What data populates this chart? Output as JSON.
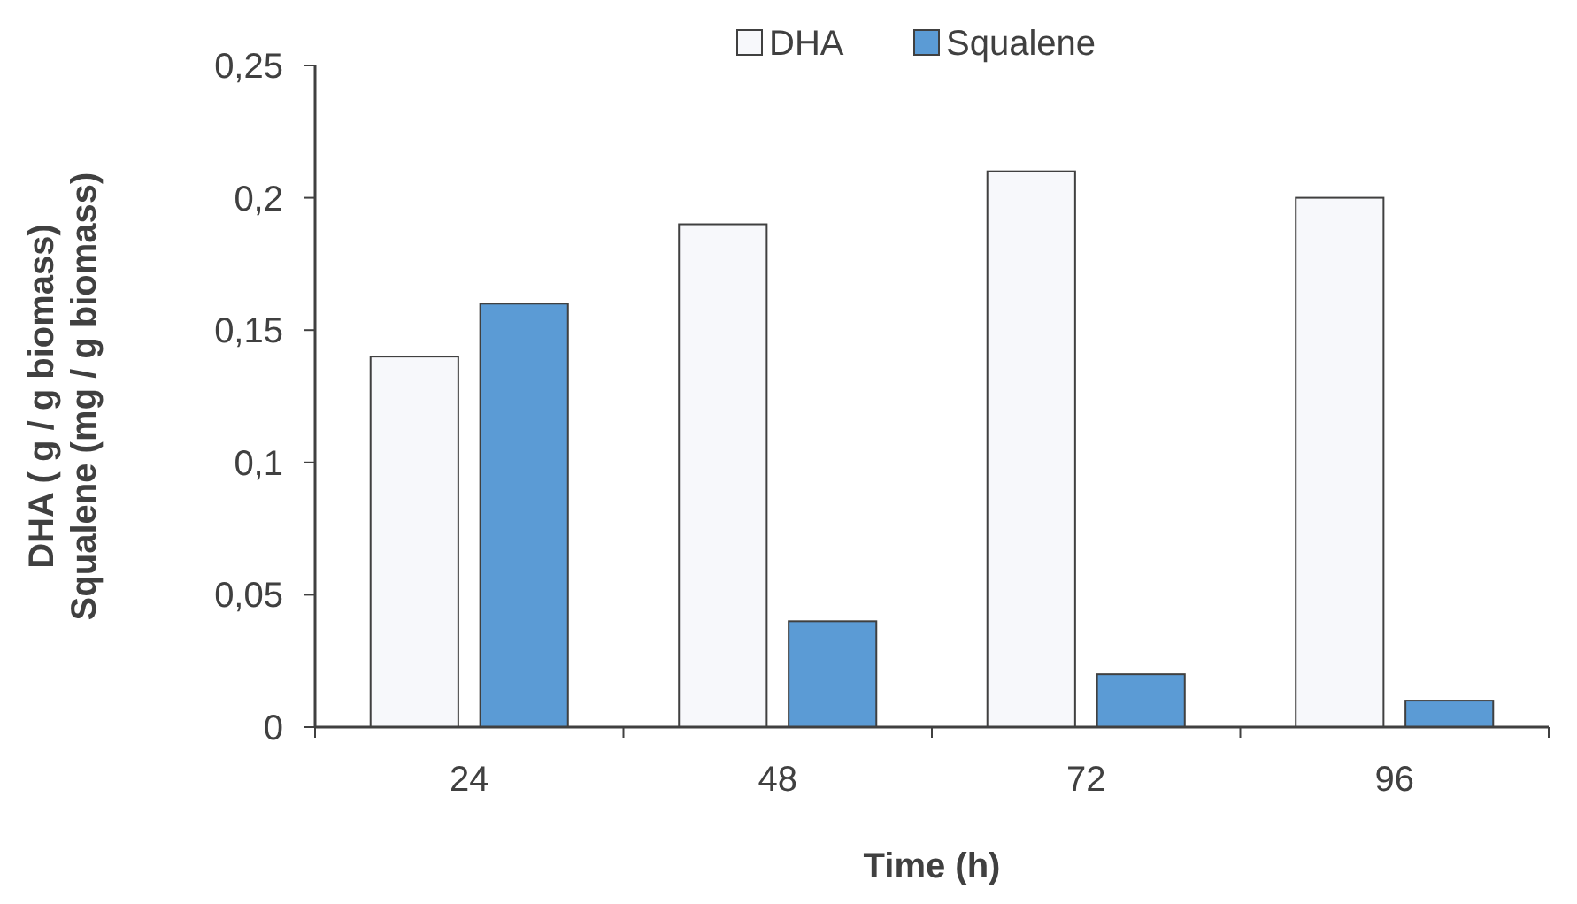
{
  "chart_data": {
    "type": "bar",
    "xlabel": "Time (h)",
    "ylabel": "DHA ( g / g biomass)\nSqualene (mg / g biomass)",
    "categories": [
      "24",
      "48",
      "72",
      "96"
    ],
    "series": [
      {
        "name": "DHA",
        "color": "#f7f8fb",
        "values": [
          0.14,
          0.19,
          0.21,
          0.2
        ]
      },
      {
        "name": "Squalene",
        "color": "#5b9bd5",
        "values": [
          0.16,
          0.04,
          0.02,
          0.01
        ]
      }
    ],
    "ylim": [
      0,
      0.25
    ],
    "yticks": [
      0,
      {
        "value": 0.05,
        "label": "0,05"
      },
      {
        "value": 0.1,
        "label": "0,1"
      },
      {
        "value": 0.15,
        "label": "0,15"
      },
      {
        "value": 0.2,
        "label": "0,2"
      },
      {
        "value": 0.25,
        "label": "0,25"
      }
    ],
    "grid": false,
    "legend": "top"
  }
}
